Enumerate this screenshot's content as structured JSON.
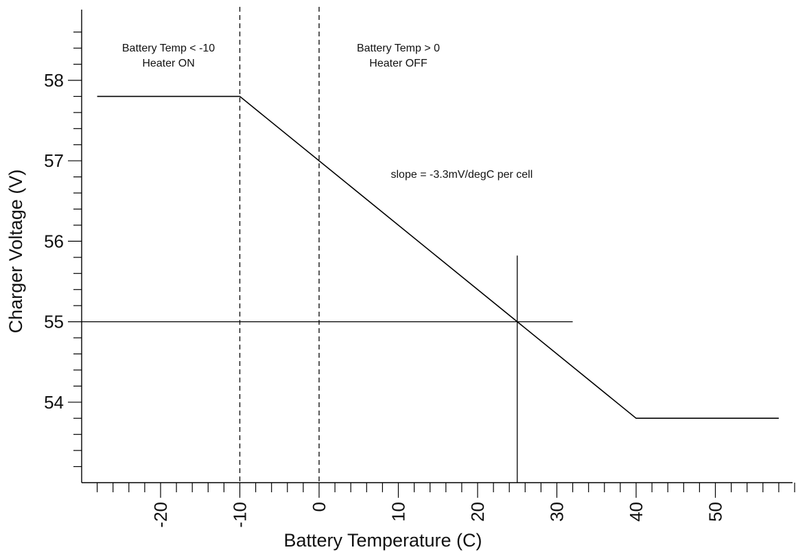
{
  "chart_data": {
    "type": "line",
    "title": "",
    "xlabel": "Battery Temperature (C)",
    "ylabel": "Charger Voltage (V)",
    "xlim": [
      -30,
      60
    ],
    "ylim": [
      53,
      58.6
    ],
    "x_ticks": [
      -20,
      -10,
      0,
      10,
      20,
      30,
      40,
      50
    ],
    "x_minor_step": 2,
    "y_ticks": [
      54,
      55,
      56,
      57,
      58
    ],
    "y_minor_step": 0.2,
    "grid": false,
    "series": [
      {
        "x": [
          -28,
          -10,
          40,
          58
        ],
        "y": [
          57.8,
          57.8,
          53.8,
          53.8
        ]
      }
    ],
    "dashed_vertical_lines": [
      -10,
      0
    ],
    "reference_lines": {
      "horizontal": {
        "y": 55,
        "x_range": [
          -30,
          32
        ]
      },
      "vertical": {
        "x": 25,
        "y_range": [
          53,
          55.6
        ]
      }
    },
    "annotations": [
      {
        "id": "heater-on",
        "lines": [
          "Battery Temp < -10",
          "Heater ON"
        ],
        "x": -19,
        "y": 58.36
      },
      {
        "id": "heater-off",
        "lines": [
          "Battery Temp > 0",
          "Heater OFF"
        ],
        "x": 10,
        "y": 58.36
      },
      {
        "id": "slope",
        "lines": [
          "slope = -3.3mV/degC per cell"
        ],
        "x": 18,
        "y": 56.79
      }
    ]
  }
}
